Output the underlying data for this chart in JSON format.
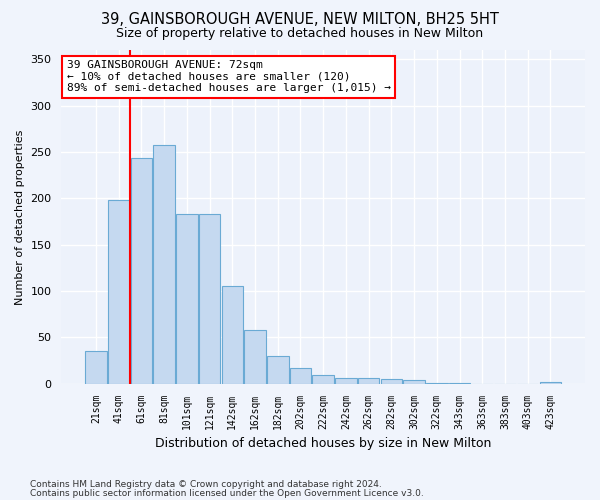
{
  "title1": "39, GAINSBOROUGH AVENUE, NEW MILTON, BH25 5HT",
  "title2": "Size of property relative to detached houses in New Milton",
  "xlabel": "Distribution of detached houses by size in New Milton",
  "ylabel": "Number of detached properties",
  "categories": [
    "21sqm",
    "41sqm",
    "61sqm",
    "81sqm",
    "101sqm",
    "121sqm",
    "142sqm",
    "162sqm",
    "182sqm",
    "202sqm",
    "222sqm",
    "242sqm",
    "262sqm",
    "282sqm",
    "302sqm",
    "322sqm",
    "343sqm",
    "363sqm",
    "383sqm",
    "403sqm",
    "423sqm"
  ],
  "values": [
    35,
    198,
    243,
    258,
    183,
    183,
    105,
    58,
    30,
    17,
    9,
    6,
    6,
    5,
    4,
    1,
    1,
    0,
    0,
    0,
    2
  ],
  "bar_color": "#c5d9f0",
  "bar_edge_color": "#6aaad4",
  "vline_x": 1.5,
  "vline_color": "red",
  "annotation_text": "39 GAINSBOROUGH AVENUE: 72sqm\n← 10% of detached houses are smaller (120)\n89% of semi-detached houses are larger (1,015) →",
  "annotation_box_color": "white",
  "annotation_box_edge": "red",
  "ylim": [
    0,
    360
  ],
  "yticks": [
    0,
    50,
    100,
    150,
    200,
    250,
    300,
    350
  ],
  "footer1": "Contains HM Land Registry data © Crown copyright and database right 2024.",
  "footer2": "Contains public sector information licensed under the Open Government Licence v3.0.",
  "bg_color": "#f0f4fc",
  "plot_bg_color": "#edf2fb",
  "title1_fontsize": 10.5,
  "title2_fontsize": 9
}
